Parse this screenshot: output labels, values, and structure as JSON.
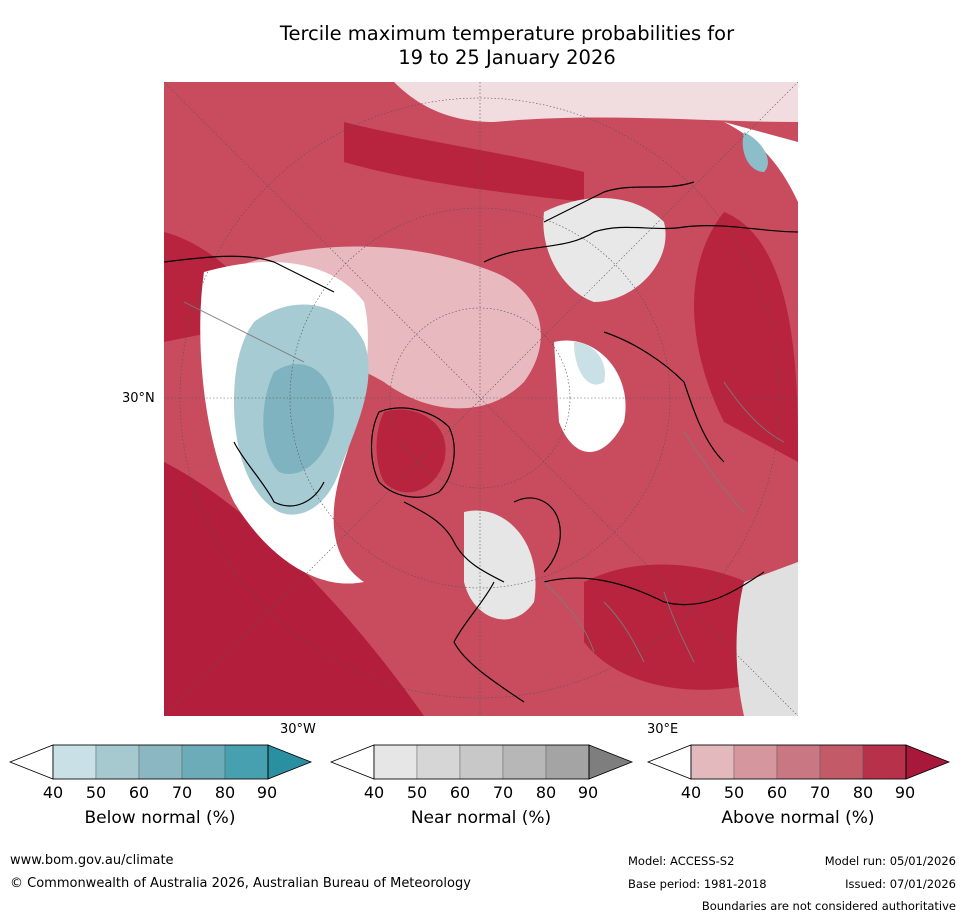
{
  "title_line1": "Tercile maximum temperature probabilities for",
  "title_line2": "19 to 25 January 2026",
  "map": {
    "lat_label": "30°N",
    "lon_labels": [
      "30°W",
      "30°E"
    ]
  },
  "legend": {
    "ticks": [
      "40",
      "50",
      "60",
      "70",
      "80",
      "90"
    ],
    "bars": [
      {
        "title": "Below normal (%)",
        "colors": [
          "#ffffff",
          "#c9e1e6",
          "#a6c8cf",
          "#8bb7c3",
          "#6cabb8",
          "#47a0b0",
          "#2b8fa2"
        ]
      },
      {
        "title": "Near normal (%)",
        "colors": [
          "#ffffff",
          "#e6e6e6",
          "#d6d6d6",
          "#c8c8c8",
          "#b7b7b7",
          "#a4a4a4",
          "#7e7e7e"
        ]
      },
      {
        "title": "Above normal (%)",
        "colors": [
          "#ffffff",
          "#e3b9bd",
          "#d6969e",
          "#c97883",
          "#c25a68",
          "#b8314a",
          "#a8183a"
        ]
      }
    ]
  },
  "footer": {
    "website": "www.bom.gov.au/climate",
    "copyright": "© Commonwealth of Australia 2026, Australian Bureau of Meteorology",
    "model": "Model: ACCESS-S2",
    "base_period": "Base period: 1981-2018",
    "model_run": "Model run: 05/01/2026",
    "issued": "Issued: 07/01/2026",
    "disclaimer": "Boundaries are not considered authoritative"
  }
}
